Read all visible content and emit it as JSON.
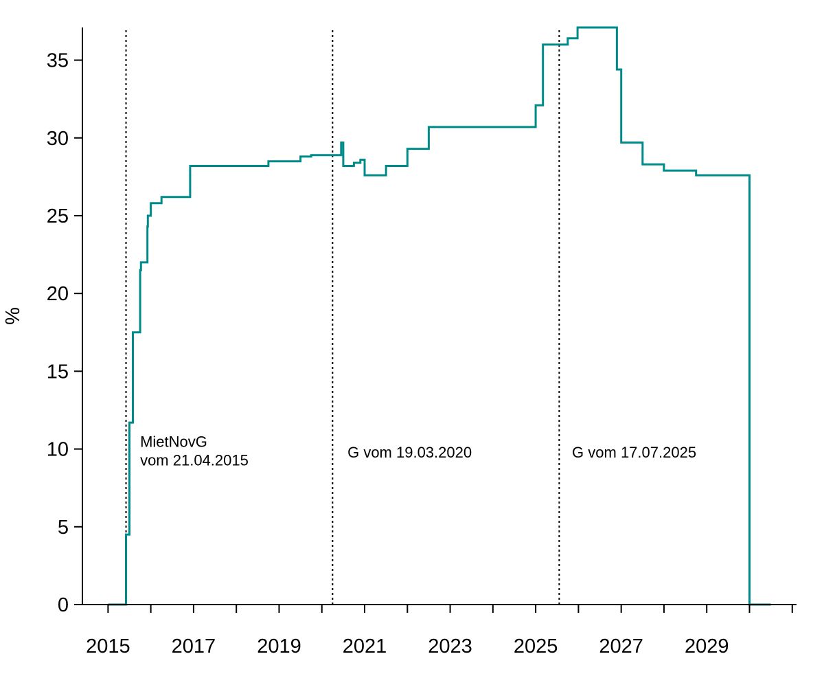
{
  "chart_data": {
    "type": "line",
    "step": true,
    "title": "",
    "xlabel": "",
    "ylabel": "%",
    "xlim": [
      2014.4,
      2031.1
    ],
    "ylim": [
      0,
      37.1
    ],
    "x_ticks": [
      2015,
      2016,
      2017,
      2018,
      2019,
      2020,
      2021,
      2022,
      2023,
      2024,
      2025,
      2026,
      2027,
      2028,
      2029,
      2030,
      2031
    ],
    "x_tick_labels": [
      "2015",
      "2017",
      "2019",
      "2021",
      "2023",
      "2025",
      "2027",
      "2029"
    ],
    "x_tick_label_values": [
      2015,
      2017,
      2019,
      2021,
      2023,
      2025,
      2027,
      2029
    ],
    "y_ticks": [
      0,
      5,
      10,
      15,
      20,
      25,
      30,
      35
    ],
    "y_tick_labels": [
      "0",
      "5",
      "10",
      "15",
      "20",
      "25",
      "30",
      "35"
    ],
    "grid": false,
    "legend": "none",
    "line_color": "#008B8B",
    "vlines": [
      {
        "x": 2015.42,
        "label_lines": [
          "MietNovG",
          "vom 21.04.2015"
        ],
        "label_x": 2015.75,
        "label_y": [
          10.5,
          9.3
        ]
      },
      {
        "x": 2020.25,
        "label_lines": [
          "G vom 19.03.2020"
        ],
        "label_x": 2020.6,
        "label_y": [
          9.8
        ]
      },
      {
        "x": 2025.55,
        "label_lines": [
          "G vom 17.07.2025"
        ],
        "label_x": 2025.85,
        "label_y": [
          9.8
        ]
      }
    ],
    "series": [
      {
        "values": [
          [
            2015.0,
            0.0
          ],
          [
            2015.42,
            0.0
          ],
          [
            2015.42,
            4.5
          ],
          [
            2015.5,
            4.5
          ],
          [
            2015.5,
            11.7
          ],
          [
            2015.58,
            11.7
          ],
          [
            2015.58,
            17.5
          ],
          [
            2015.75,
            17.5
          ],
          [
            2015.75,
            21.5
          ],
          [
            2015.77,
            21.5
          ],
          [
            2015.77,
            22.0
          ],
          [
            2015.92,
            22.0
          ],
          [
            2015.92,
            24.3
          ],
          [
            2015.93,
            24.3
          ],
          [
            2015.93,
            25.0
          ],
          [
            2016.0,
            25.0
          ],
          [
            2016.0,
            25.8
          ],
          [
            2016.25,
            25.8
          ],
          [
            2016.25,
            26.2
          ],
          [
            2016.92,
            26.2
          ],
          [
            2016.92,
            28.2
          ],
          [
            2018.75,
            28.2
          ],
          [
            2018.75,
            28.5
          ],
          [
            2019.5,
            28.5
          ],
          [
            2019.5,
            28.8
          ],
          [
            2019.75,
            28.8
          ],
          [
            2019.75,
            28.9
          ],
          [
            2020.45,
            28.9
          ],
          [
            2020.45,
            29.7
          ],
          [
            2020.5,
            29.7
          ],
          [
            2020.5,
            28.2
          ],
          [
            2020.75,
            28.2
          ],
          [
            2020.75,
            28.4
          ],
          [
            2020.9,
            28.4
          ],
          [
            2020.9,
            28.6
          ],
          [
            2021.0,
            28.6
          ],
          [
            2021.0,
            27.6
          ],
          [
            2021.5,
            27.6
          ],
          [
            2021.5,
            28.2
          ],
          [
            2022.0,
            28.2
          ],
          [
            2022.0,
            29.3
          ],
          [
            2022.5,
            29.3
          ],
          [
            2022.5,
            30.7
          ],
          [
            2025.0,
            30.7
          ],
          [
            2025.0,
            32.1
          ],
          [
            2025.17,
            32.1
          ],
          [
            2025.17,
            36.0
          ],
          [
            2025.75,
            36.0
          ],
          [
            2025.75,
            36.4
          ],
          [
            2025.98,
            36.4
          ],
          [
            2025.98,
            37.1
          ],
          [
            2026.9,
            37.1
          ],
          [
            2026.9,
            34.4
          ],
          [
            2027.0,
            34.4
          ],
          [
            2027.0,
            29.7
          ],
          [
            2027.5,
            29.7
          ],
          [
            2027.5,
            28.3
          ],
          [
            2028.0,
            28.3
          ],
          [
            2028.0,
            27.9
          ],
          [
            2028.75,
            27.9
          ],
          [
            2028.75,
            27.6
          ],
          [
            2030.0,
            27.6
          ],
          [
            2030.0,
            0.0
          ],
          [
            2030.5,
            0.0
          ]
        ]
      }
    ]
  }
}
